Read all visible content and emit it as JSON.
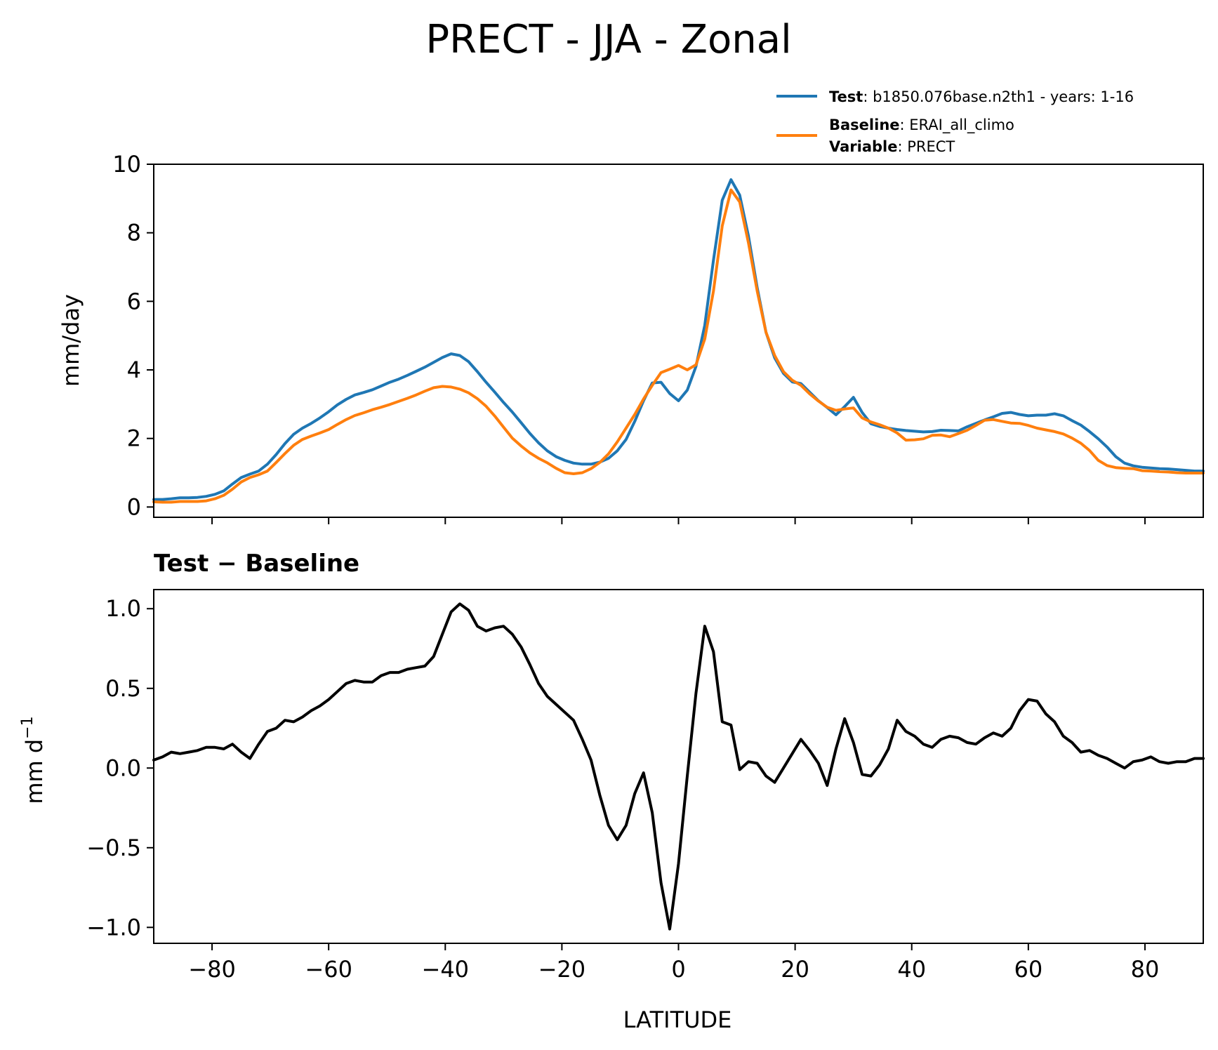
{
  "figure": {
    "title": "PRECT - JJA - Zonal",
    "legend": {
      "test_key": "Test",
      "test_value": ": b1850.076base.n2th1 - years: 1-16",
      "baseline_key": "Baseline",
      "baseline_value": ": ERAI_all_climo",
      "variable_key": "Variable",
      "variable_value": ": PRECT"
    },
    "diff_title": "Test − Baseline",
    "colors": {
      "test": "#1f77b4",
      "baseline": "#ff7f0e",
      "diff": "#000000"
    }
  },
  "chart_data": [
    {
      "type": "line",
      "panel": "top",
      "xlabel": "",
      "ylabel": "mm/day",
      "xlim": [
        -90,
        90
      ],
      "ylim": [
        -0.3,
        10
      ],
      "xticks": [
        -80,
        -60,
        -40,
        -20,
        0,
        20,
        40,
        60,
        80
      ],
      "yticks": [
        0,
        2,
        4,
        6,
        8,
        10
      ],
      "ytick_labels": [
        "0",
        "2",
        "4",
        "6",
        "8",
        "10"
      ],
      "grid": false,
      "legend_position": "above-right",
      "x": [
        -90,
        -88.5,
        -87,
        -85.5,
        -84,
        -82.5,
        -81,
        -79.5,
        -78,
        -76.5,
        -75,
        -73.5,
        -72,
        -70.5,
        -69,
        -67.5,
        -66,
        -64.5,
        -63,
        -61.5,
        -60,
        -58.5,
        -57,
        -55.5,
        -54,
        -52.5,
        -51,
        -49.5,
        -48,
        -46.5,
        -45,
        -43.5,
        -42,
        -40.5,
        -39,
        -37.5,
        -36,
        -34.5,
        -33,
        -31.5,
        -30,
        -28.5,
        -27,
        -25.5,
        -24,
        -22.5,
        -21,
        -19.5,
        -18,
        -16.5,
        -15,
        -13.5,
        -12,
        -10.5,
        -9,
        -7.5,
        -6,
        -4.5,
        -3,
        -1.5,
        0,
        1.5,
        3,
        4.5,
        6,
        7.5,
        9,
        10.5,
        12,
        13.5,
        15,
        16.5,
        18,
        19.5,
        21,
        22.5,
        24,
        25.5,
        27,
        28.5,
        30,
        31.5,
        33,
        34.5,
        36,
        37.5,
        39,
        40.5,
        42,
        43.5,
        45,
        46.5,
        48,
        49.5,
        51,
        52.5,
        54,
        55.5,
        57,
        58.5,
        60,
        61.5,
        63,
        64.5,
        66,
        67.5,
        69,
        70.5,
        72,
        73.5,
        75,
        76.5,
        78,
        79.5,
        81,
        82.5,
        84,
        85.5,
        87,
        88.5,
        90
      ],
      "series": [
        {
          "name": "Test",
          "color": "#1f77b4",
          "values": [
            0.22,
            0.22,
            0.24,
            0.27,
            0.27,
            0.28,
            0.31,
            0.37,
            0.47,
            0.67,
            0.86,
            0.96,
            1.05,
            1.25,
            1.53,
            1.85,
            2.12,
            2.3,
            2.44,
            2.6,
            2.78,
            2.98,
            3.14,
            3.27,
            3.34,
            3.42,
            3.53,
            3.64,
            3.73,
            3.84,
            3.96,
            4.08,
            4.22,
            4.36,
            4.47,
            4.42,
            4.24,
            3.95,
            3.64,
            3.35,
            3.05,
            2.77,
            2.46,
            2.15,
            1.87,
            1.64,
            1.47,
            1.36,
            1.28,
            1.25,
            1.25,
            1.31,
            1.42,
            1.64,
            1.97,
            2.5,
            3.1,
            3.62,
            3.64,
            3.31,
            3.1,
            3.41,
            4.1,
            5.3,
            7.2,
            8.95,
            9.55,
            9.1,
            7.9,
            6.4,
            5.1,
            4.35,
            3.9,
            3.65,
            3.6,
            3.35,
            3.1,
            2.9,
            2.69,
            2.93,
            3.2,
            2.76,
            2.43,
            2.35,
            2.3,
            2.26,
            2.23,
            2.21,
            2.19,
            2.2,
            2.24,
            2.23,
            2.22,
            2.34,
            2.44,
            2.54,
            2.63,
            2.73,
            2.76,
            2.7,
            2.66,
            2.68,
            2.68,
            2.72,
            2.66,
            2.52,
            2.39,
            2.2,
            1.99,
            1.75,
            1.47,
            1.28,
            1.2,
            1.16,
            1.14,
            1.12,
            1.11,
            1.09,
            1.07,
            1.05,
            1.05
          ]
        },
        {
          "name": "Baseline",
          "color": "#ff7f0e",
          "values": [
            0.15,
            0.14,
            0.14,
            0.16,
            0.16,
            0.16,
            0.18,
            0.24,
            0.34,
            0.52,
            0.73,
            0.86,
            0.94,
            1.05,
            1.3,
            1.56,
            1.8,
            1.97,
            2.07,
            2.16,
            2.26,
            2.41,
            2.55,
            2.67,
            2.75,
            2.84,
            2.91,
            2.99,
            3.08,
            3.17,
            3.27,
            3.38,
            3.48,
            3.52,
            3.5,
            3.44,
            3.33,
            3.16,
            2.94,
            2.65,
            2.33,
            2.01,
            1.78,
            1.58,
            1.42,
            1.29,
            1.13,
            1.0,
            0.97,
            1.0,
            1.12,
            1.3,
            1.55,
            1.9,
            2.3,
            2.7,
            3.15,
            3.55,
            3.92,
            4.02,
            4.13,
            4.0,
            4.15,
            4.9,
            6.3,
            8.2,
            9.25,
            8.9,
            7.7,
            6.3,
            5.1,
            4.42,
            3.95,
            3.7,
            3.55,
            3.3,
            3.09,
            2.91,
            2.82,
            2.86,
            2.89,
            2.6,
            2.48,
            2.4,
            2.3,
            2.16,
            1.95,
            1.96,
            1.99,
            2.09,
            2.1,
            2.05,
            2.14,
            2.24,
            2.38,
            2.53,
            2.55,
            2.5,
            2.45,
            2.44,
            2.38,
            2.3,
            2.25,
            2.2,
            2.13,
            2.01,
            1.86,
            1.65,
            1.36,
            1.21,
            1.15,
            1.13,
            1.12,
            1.06,
            1.05,
            1.03,
            1.02,
            1.0,
            0.99,
            0.99,
            0.99
          ]
        }
      ]
    },
    {
      "type": "line",
      "panel": "bottom",
      "title": "Test − Baseline",
      "xlabel": "LATITUDE",
      "ylabel": "mm d",
      "ylabel_sup": "−1",
      "xlim": [
        -90,
        90
      ],
      "ylim": [
        -1.1,
        1.12
      ],
      "xticks": [
        -80,
        -60,
        -40,
        -20,
        0,
        20,
        40,
        60,
        80
      ],
      "xtick_labels": [
        "−80",
        "−60",
        "−40",
        "−20",
        "0",
        "20",
        "40",
        "60",
        "80"
      ],
      "yticks": [
        1.0,
        0.5,
        0.0,
        -0.5,
        -1.0
      ],
      "ytick_labels": [
        "1.0",
        "0.5",
        "0.0",
        "−0.5",
        "−1.0"
      ],
      "grid": false,
      "x": [
        -90,
        -88.5,
        -87,
        -85.5,
        -84,
        -82.5,
        -81,
        -79.5,
        -78,
        -76.5,
        -75,
        -73.5,
        -72,
        -70.5,
        -69,
        -67.5,
        -66,
        -64.5,
        -63,
        -61.5,
        -60,
        -58.5,
        -57,
        -55.5,
        -54,
        -52.5,
        -51,
        -49.5,
        -48,
        -46.5,
        -45,
        -43.5,
        -42,
        -40.5,
        -39,
        -37.5,
        -36,
        -34.5,
        -33,
        -31.5,
        -30,
        -28.5,
        -27,
        -25.5,
        -24,
        -22.5,
        -21,
        -19.5,
        -18,
        -16.5,
        -15,
        -13.5,
        -12,
        -10.5,
        -9,
        -7.5,
        -6,
        -4.5,
        -3,
        -1.5,
        0,
        1.5,
        3,
        4.5,
        6,
        7.5,
        9,
        10.5,
        12,
        13.5,
        15,
        16.5,
        18,
        19.5,
        21,
        22.5,
        24,
        25.5,
        27,
        28.5,
        30,
        31.5,
        33,
        34.5,
        36,
        37.5,
        39,
        40.5,
        42,
        43.5,
        45,
        46.5,
        48,
        49.5,
        51,
        52.5,
        54,
        55.5,
        57,
        58.5,
        60,
        61.5,
        63,
        64.5,
        66,
        67.5,
        69,
        70.5,
        72,
        73.5,
        75,
        76.5,
        78,
        79.5,
        81,
        82.5,
        84,
        85.5,
        87,
        88.5,
        90
      ],
      "series": [
        {
          "color": "#000000",
          "values": [
            0.05,
            0.07,
            0.1,
            0.09,
            0.1,
            0.11,
            0.13,
            0.13,
            0.12,
            0.15,
            0.1,
            0.06,
            0.15,
            0.23,
            0.25,
            0.3,
            0.29,
            0.32,
            0.36,
            0.39,
            0.43,
            0.48,
            0.53,
            0.55,
            0.54,
            0.54,
            0.58,
            0.6,
            0.6,
            0.62,
            0.63,
            0.64,
            0.7,
            0.84,
            0.98,
            1.03,
            0.99,
            0.89,
            0.86,
            0.88,
            0.89,
            0.84,
            0.76,
            0.65,
            0.53,
            0.45,
            0.4,
            0.35,
            0.3,
            0.18,
            0.05,
            -0.17,
            -0.36,
            -0.45,
            -0.36,
            -0.16,
            -0.03,
            -0.28,
            -0.72,
            -1.01,
            -0.6,
            -0.05,
            0.47,
            0.89,
            0.73,
            0.29,
            0.27,
            -0.01,
            0.04,
            0.03,
            -0.05,
            -0.09,
            0.0,
            0.09,
            0.18,
            0.11,
            0.03,
            -0.11,
            0.12,
            0.31,
            0.16,
            -0.04,
            -0.05,
            0.02,
            0.12,
            0.3,
            0.23,
            0.2,
            0.15,
            0.13,
            0.18,
            0.2,
            0.19,
            0.16,
            0.15,
            0.19,
            0.22,
            0.2,
            0.25,
            0.36,
            0.43,
            0.42,
            0.34,
            0.29,
            0.2,
            0.16,
            0.1,
            0.11,
            0.08,
            0.06,
            0.03,
            0.0,
            0.04,
            0.05,
            0.07,
            0.04,
            0.03,
            0.04,
            0.04,
            0.06,
            0.06
          ]
        }
      ]
    }
  ]
}
